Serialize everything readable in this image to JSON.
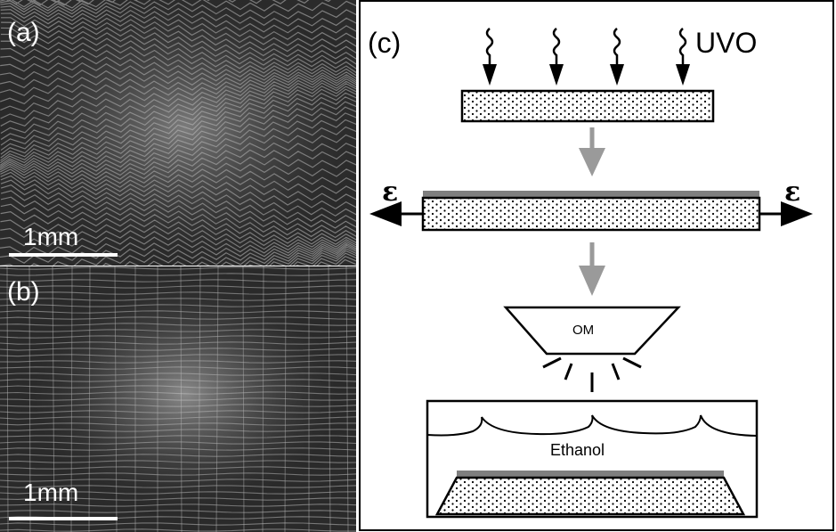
{
  "figure": {
    "panel_a": {
      "label": "(a)",
      "scale_text": "1mm"
    },
    "panel_b": {
      "label": "(b)",
      "scale_text": "1mm"
    },
    "panel_c": {
      "label": "(c)",
      "uvo_label": "UVO",
      "strain_left": "ε",
      "strain_right": "ε",
      "om_label": "OM",
      "ethanol_label": "Ethanol"
    }
  },
  "colors": {
    "micrograph_dark": "#2b2b2b",
    "pattern_line": "#9a9a9a",
    "arrow_gray": "#9a9a9a",
    "ink": "#000000"
  }
}
